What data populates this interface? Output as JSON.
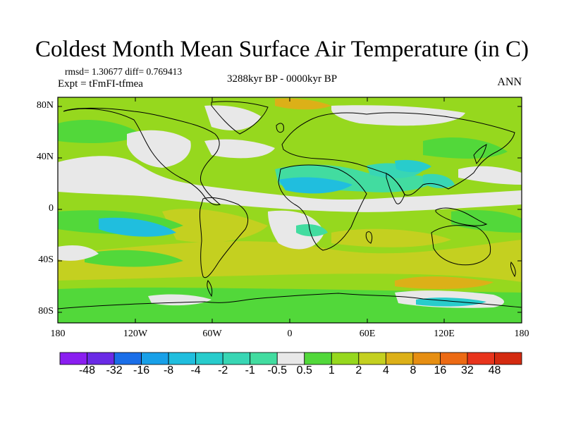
{
  "title": "Coldest Month Mean Surface Air Temperature (in C)",
  "stats": {
    "rmsd": "rmsd= 1.30677 diff= 0.769413",
    "expt": "Expt = tFmFI-tfmea"
  },
  "period": "3288kyr BP - 0000kyr BP",
  "season": "ANN",
  "lat_labels": [
    "80N",
    "40N",
    "0",
    "40S",
    "80S"
  ],
  "lon_labels": [
    "180",
    "120W",
    "60W",
    "0",
    "60E",
    "120E",
    "180"
  ],
  "legend": {
    "labels": [
      "-48",
      "-32",
      "-16",
      "-8",
      "-4",
      "-2",
      "-1",
      "-0.5",
      "0.5",
      "1",
      "2",
      "4",
      "8",
      "16",
      "32",
      "48"
    ],
    "colors": [
      "#8a1ef0",
      "#6a2ae6",
      "#1a6ee8",
      "#18a0e8",
      "#20bede",
      "#28cccc",
      "#38d6b4",
      "#42dca0",
      "#e8e8e8",
      "#52d83a",
      "#96d81e",
      "#c4d020",
      "#dcb018",
      "#e68e12",
      "#ec6a14",
      "#e8341c",
      "#d42a10"
    ]
  },
  "colors": {
    "land_outline": "#000000",
    "background_field": "#96d81e"
  }
}
